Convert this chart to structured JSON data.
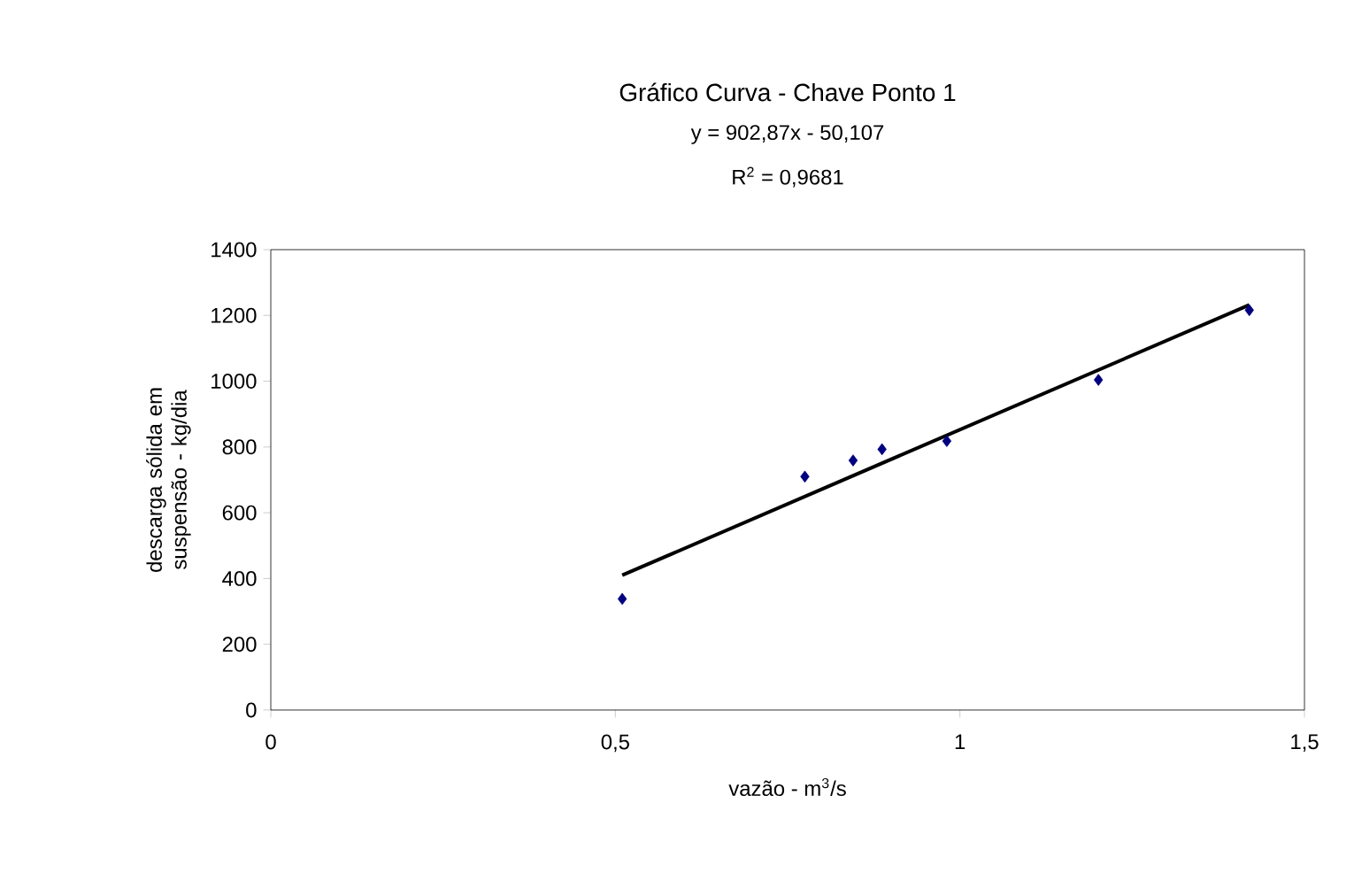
{
  "chart_data": {
    "type": "scatter",
    "title": "Gráfico Curva - Chave Ponto 1",
    "annotations": [
      "y = 902,87x - 50,107",
      "R$^{2}$ = 0,9681"
    ],
    "xlabel": "vazão - m$^{3}$/s",
    "ylabel": "descarga sólida em suspensão - kg/dia",
    "series": [
      {
        "color": "#000080",
        "marker": "diamond",
        "x": [
          0.51,
          0.775,
          0.845,
          0.887,
          0.981,
          1.201,
          1.42
        ],
        "values": [
          338,
          710,
          759,
          793,
          818,
          1004,
          1216
        ]
      },
      {
        "type": "line",
        "color": "#000000",
        "marker": "none",
        "line_style": "solid",
        "x": [
          0.51,
          1.42
        ],
        "values": [
          410,
          1232
        ]
      }
    ],
    "xlim": [
      0,
      1.5
    ],
    "ylim": [
      0,
      1400
    ],
    "xticks": [
      0,
      {
        "value": 0.5,
        "label": "0,5"
      },
      1,
      {
        "value": 1.5,
        "label": "1,5"
      }
    ],
    "yticks": [
      0,
      200,
      400,
      600,
      800,
      1000,
      1200,
      1400
    ]
  }
}
